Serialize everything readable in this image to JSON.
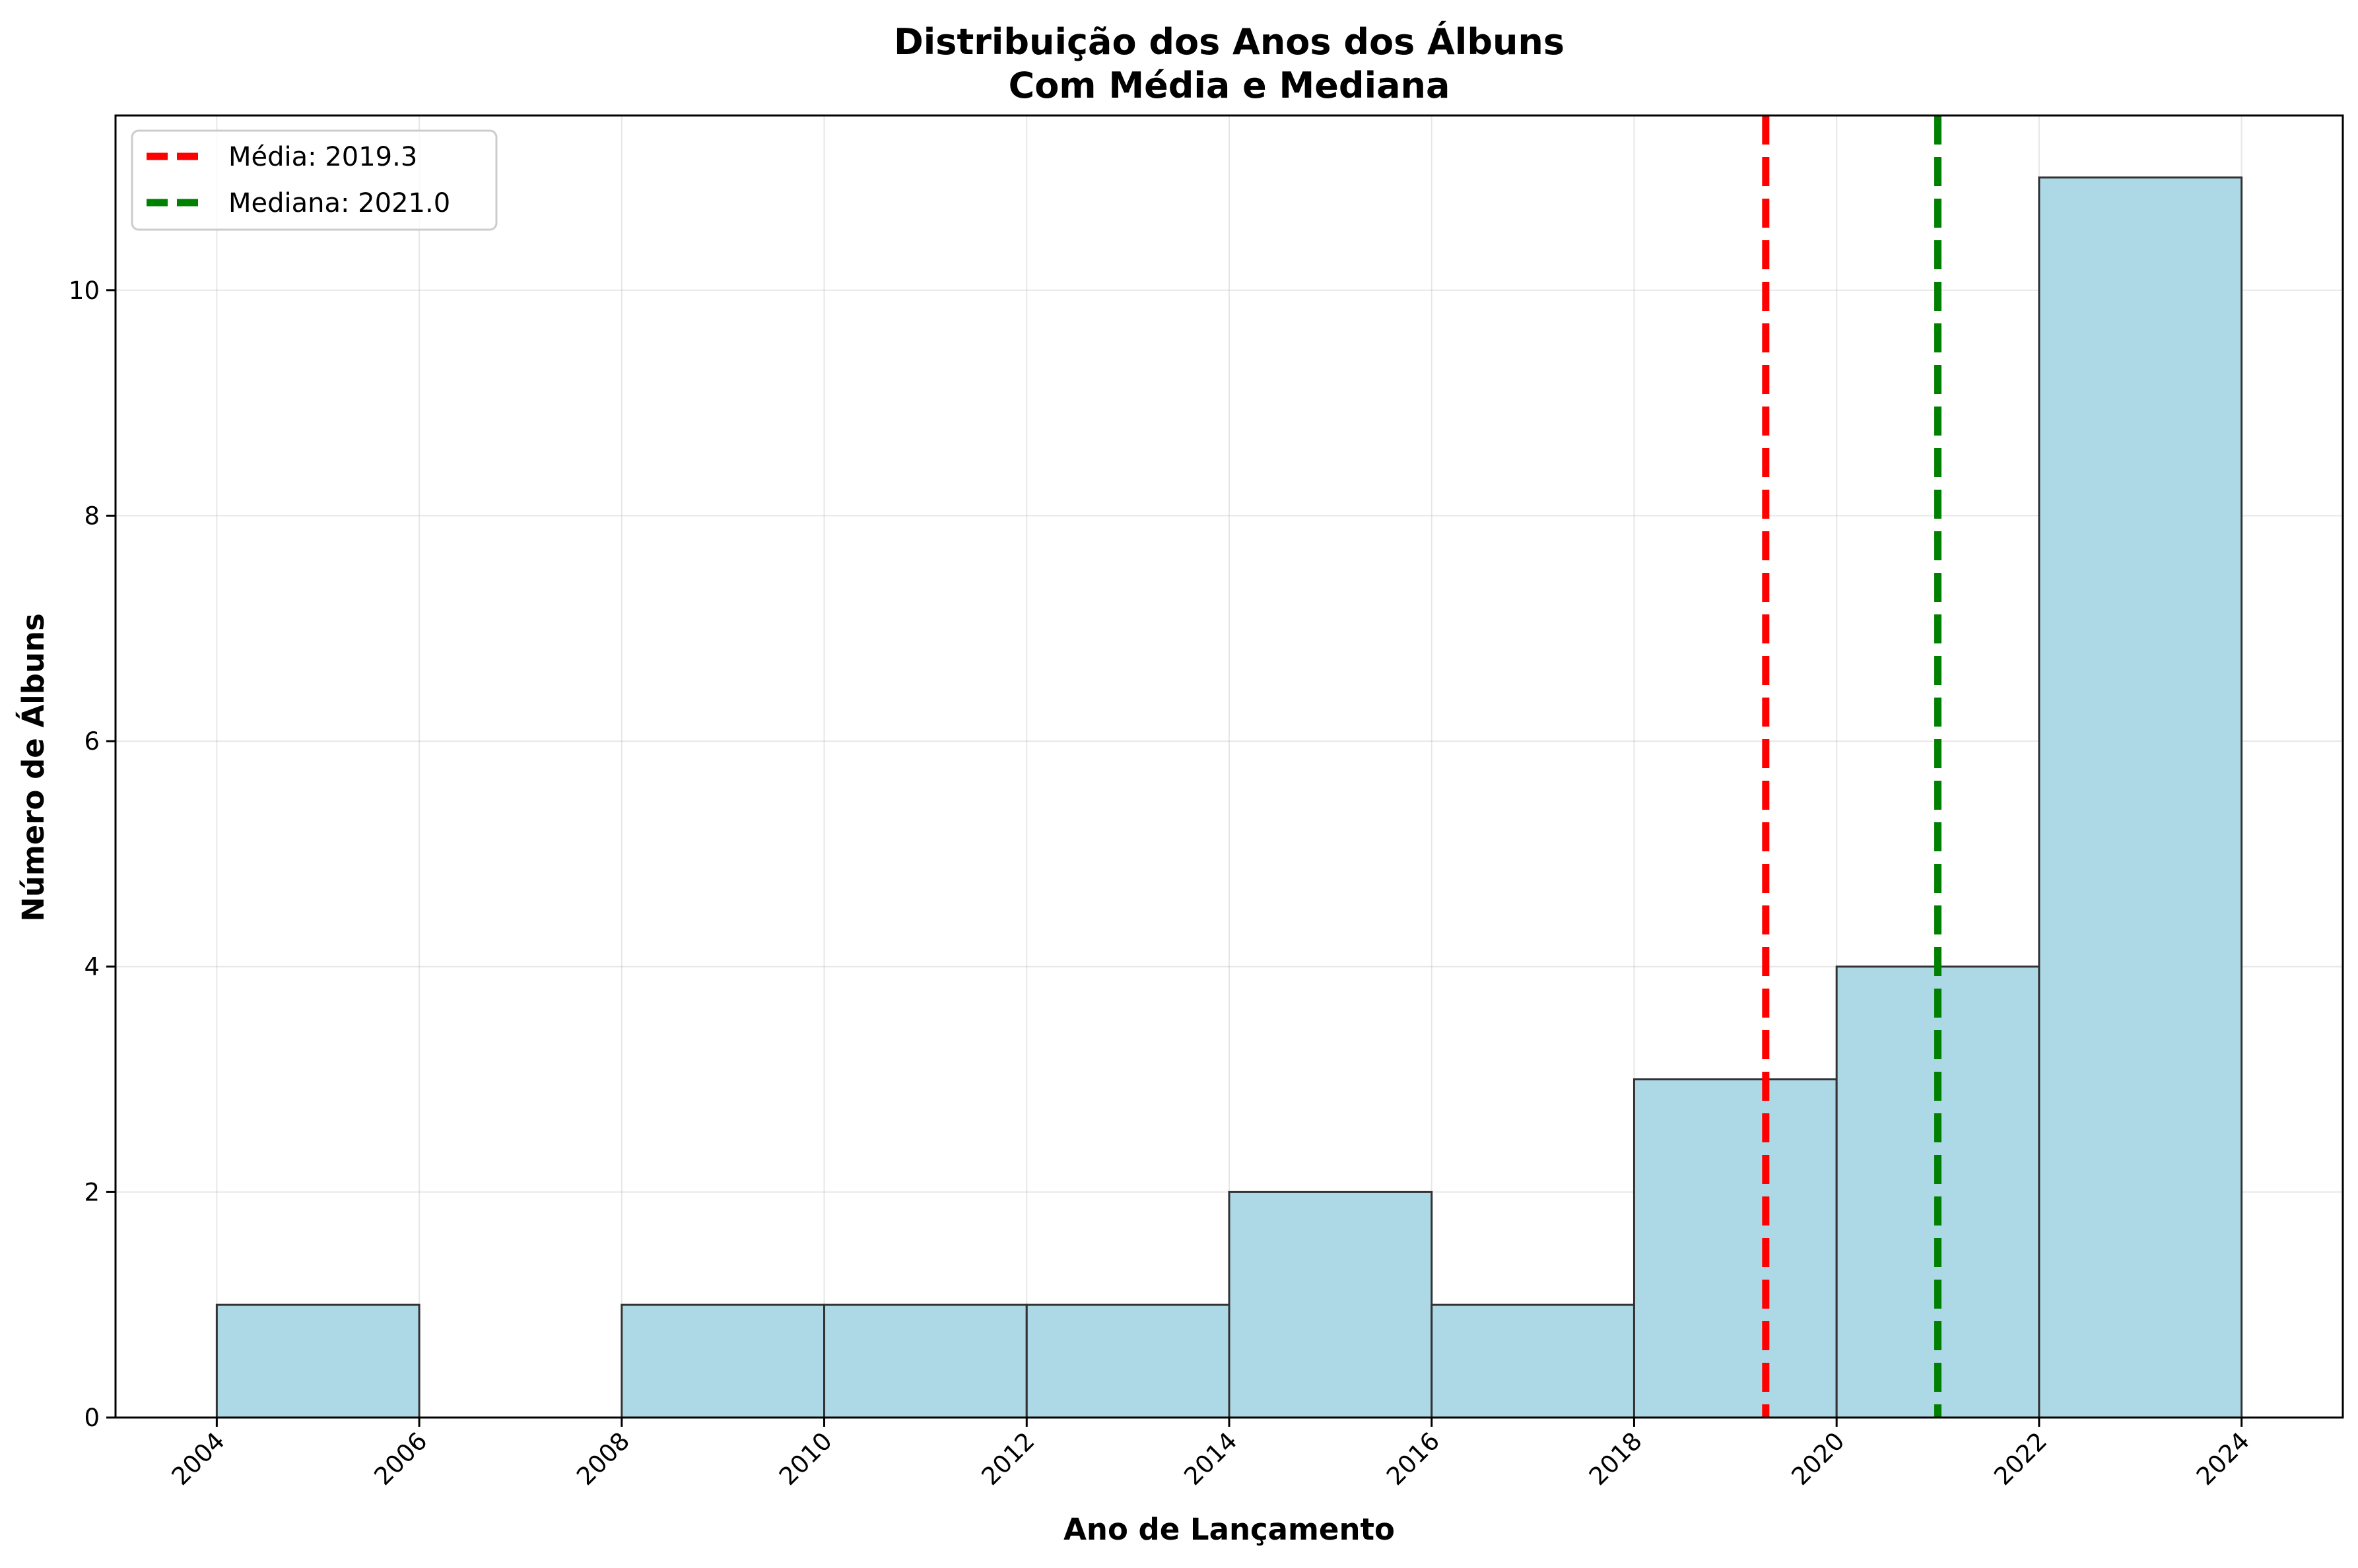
{
  "chart_data": {
    "type": "bar",
    "title_line1": "Distribuição dos Anos dos Álbuns",
    "title_line2": "Com Média e Mediana",
    "xlabel": "Ano de Lançamento",
    "ylabel": "Número de Álbuns",
    "bins": [
      {
        "start": 2004,
        "end": 2006,
        "count": 1
      },
      {
        "start": 2006,
        "end": 2008,
        "count": 0
      },
      {
        "start": 2008,
        "end": 2010,
        "count": 1
      },
      {
        "start": 2010,
        "end": 2012,
        "count": 1
      },
      {
        "start": 2012,
        "end": 2014,
        "count": 1
      },
      {
        "start": 2014,
        "end": 2016,
        "count": 2
      },
      {
        "start": 2016,
        "end": 2018,
        "count": 1
      },
      {
        "start": 2018,
        "end": 2020,
        "count": 3
      },
      {
        "start": 2020,
        "end": 2022,
        "count": 4
      },
      {
        "start": 2022,
        "end": 2024,
        "count": 11
      }
    ],
    "xlim": [
      2003,
      2025
    ],
    "ylim": [
      0,
      11.55
    ],
    "xticks": [
      "2004",
      "2006",
      "2008",
      "2010",
      "2012",
      "2014",
      "2016",
      "2018",
      "2020",
      "2022",
      "2024"
    ],
    "yticks": [
      "0",
      "2",
      "4",
      "6",
      "8",
      "10"
    ],
    "grid": true,
    "legend_position": "top-left",
    "lines": [
      {
        "name": "Média: 2019.3",
        "value": 2019.3,
        "color": "#ff0000",
        "style": "dashed"
      },
      {
        "name": "Mediana: 2021.0",
        "value": 2021.0,
        "color": "#008000",
        "style": "dashed"
      }
    ],
    "bar_color": "#add8e6",
    "bar_edge_color": "#333333"
  }
}
